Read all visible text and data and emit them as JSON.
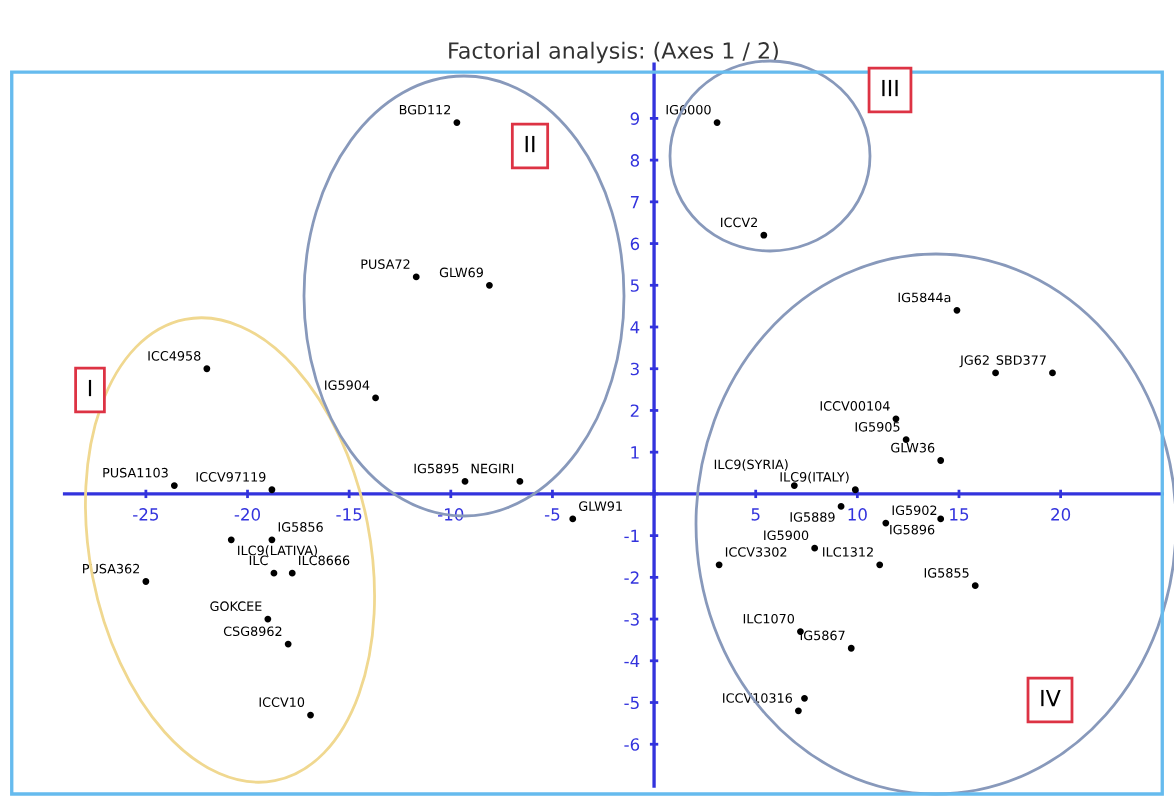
{
  "chart_data": {
    "type": "scatter",
    "title": "Factorial analysis: (Axes 1 / 2)",
    "series": [
      {
        "color": "#000000",
        "marker": "circle",
        "x": [
          -9.7,
          -11.7,
          -8.1,
          -13.7,
          -9.3,
          -6.6,
          -4.0,
          -22.0,
          -23.6,
          -18.8,
          -20.8,
          -18.8,
          -25.0,
          -18.7,
          -17.8,
          -19.0,
          -18.0,
          -16.9,
          3.1,
          5.4,
          14.9,
          16.8,
          19.6,
          11.9,
          12.4,
          14.1,
          9.9,
          6.9,
          9.2,
          11.4,
          14.1,
          7.9,
          3.2,
          11.1,
          15.8,
          7.2,
          9.7,
          7.1,
          7.4
        ],
        "values": [
          8.9,
          5.2,
          5.0,
          2.3,
          0.3,
          0.3,
          -0.6,
          3.0,
          0.2,
          0.1,
          -1.1,
          -1.1,
          -2.1,
          -1.9,
          -1.9,
          -3.0,
          -3.6,
          -5.3,
          8.9,
          6.2,
          4.4,
          2.9,
          2.9,
          1.8,
          1.3,
          0.8,
          0.1,
          0.2,
          -0.3,
          -0.7,
          -0.6,
          -1.3,
          -1.7,
          -1.7,
          -2.2,
          -3.3,
          -3.7,
          -5.2,
          -4.9
        ]
      }
    ],
    "annotations": [
      {
        "text": "BGD112",
        "x": -9.7,
        "y": 8.9
      },
      {
        "text": "PUSA72",
        "x": -11.7,
        "y": 5.2
      },
      {
        "text": "GLW69",
        "x": -8.1,
        "y": 5.0
      },
      {
        "text": "IG5904",
        "x": -13.7,
        "y": 2.3
      },
      {
        "text": "IG5895",
        "x": -9.3,
        "y": 0.3
      },
      {
        "text": "NEGIRI",
        "x": -6.6,
        "y": 0.3
      },
      {
        "text": "GLW91",
        "x": -4.0,
        "y": -0.6
      },
      {
        "text": "ICC4958",
        "x": -22.0,
        "y": 3.0
      },
      {
        "text": "PUSA1103",
        "x": -23.6,
        "y": 0.2
      },
      {
        "text": "ICCV97119",
        "x": -18.8,
        "y": 0.1
      },
      {
        "text": "ILC9(LATIVA)",
        "x": -20.8,
        "y": -1.1
      },
      {
        "text": "IG5856",
        "x": -18.8,
        "y": -1.1
      },
      {
        "text": "PUSA362",
        "x": -25.0,
        "y": -2.1
      },
      {
        "text": "ILC",
        "x": -18.7,
        "y": -1.9
      },
      {
        "text": "ILC8666",
        "x": -17.8,
        "y": -1.9
      },
      {
        "text": "GOKCEE",
        "x": -19.0,
        "y": -3.0
      },
      {
        "text": "CSG8962",
        "x": -18.0,
        "y": -3.6
      },
      {
        "text": "ICCV10",
        "x": -16.9,
        "y": -5.3
      },
      {
        "text": "IG6000",
        "x": 3.1,
        "y": 8.9
      },
      {
        "text": "ICCV2",
        "x": 5.4,
        "y": 6.2
      },
      {
        "text": "IG5844a",
        "x": 14.9,
        "y": 4.4
      },
      {
        "text": "JG62",
        "x": 16.8,
        "y": 2.9
      },
      {
        "text": "SBD377",
        "x": 19.6,
        "y": 2.9
      },
      {
        "text": "ICCV00104",
        "x": 11.9,
        "y": 1.8
      },
      {
        "text": "IG5905",
        "x": 12.4,
        "y": 1.3
      },
      {
        "text": "GLW36",
        "x": 14.1,
        "y": 0.8
      },
      {
        "text": "ILC9(ITALY)",
        "x": 9.9,
        "y": 0.1
      },
      {
        "text": "ILC9(SYRIA)",
        "x": 6.9,
        "y": 0.2
      },
      {
        "text": "IG5889",
        "x": 9.2,
        "y": -0.3
      },
      {
        "text": "IG5902",
        "x": 11.4,
        "y": -0.7
      },
      {
        "text": "IG5896",
        "x": 14.1,
        "y": -0.6
      },
      {
        "text": "IG5900",
        "x": 7.9,
        "y": -1.3
      },
      {
        "text": "ICCV3302",
        "x": 3.2,
        "y": -1.7
      },
      {
        "text": "ILC1312",
        "x": 11.1,
        "y": -1.7
      },
      {
        "text": "IG5855",
        "x": 15.8,
        "y": -2.2
      },
      {
        "text": "ILC1070",
        "x": 7.2,
        "y": -3.3
      },
      {
        "text": "IG5867",
        "x": 9.7,
        "y": -3.7
      },
      {
        "text": "ICCV10316",
        "x": 7.1,
        "y": -5.2
      },
      "I",
      "II",
      "III",
      "IV"
    ],
    "xlim": [
      -29,
      25
    ],
    "ylim": [
      -7,
      10.3
    ],
    "xticks": [
      -25,
      -20,
      -15,
      -10,
      -5,
      {
        "value": 0,
        "label": null
      },
      5,
      10,
      15,
      20
    ],
    "yticks": [
      -6,
      -5,
      -4,
      -3,
      -2,
      -1,
      {
        "value": 0,
        "label": null
      },
      1,
      2,
      3,
      4,
      5,
      6,
      7,
      8,
      9
    ],
    "grid": false,
    "legend": false
  }
}
